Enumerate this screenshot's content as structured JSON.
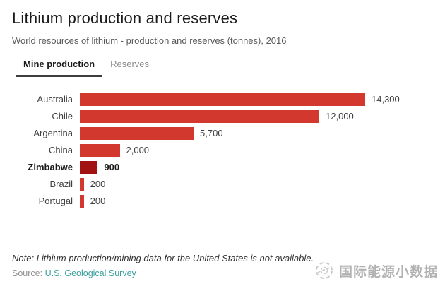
{
  "header": {
    "title": "Lithium production and reserves",
    "subtitle": "World resources of lithium - production and reserves (tonnes), 2016"
  },
  "tabs": [
    {
      "label": "Mine production",
      "active": true
    },
    {
      "label": "Reserves",
      "active": false
    }
  ],
  "chart_data": {
    "type": "bar",
    "orientation": "horizontal",
    "title": "Lithium production and reserves",
    "subtitle": "World resources of lithium - production and reserves (tonnes), 2016",
    "unit": "tonnes",
    "year": "2016",
    "categories": [
      "Australia",
      "Chile",
      "Argentina",
      "China",
      "Zimbabwe",
      "Brazil",
      "Portugal"
    ],
    "values": [
      14300,
      12000,
      5700,
      2000,
      900,
      200,
      200
    ],
    "value_labels": [
      "14,300",
      "12,000",
      "5,700",
      "2,000",
      "900",
      "200",
      "200"
    ],
    "emphasized_category": "Zimbabwe",
    "bar_color": "#d2382d",
    "emphasis_bar_color": "#a31212",
    "xlim": [
      0,
      14300
    ],
    "grid": false,
    "legend": false
  },
  "footer": {
    "note": "Note: Lithium production/mining data for the United States is not available.",
    "source_prefix": "Source: ",
    "source_link": "U.S. Geological Survey",
    "source_link_color": "#3aa09e"
  },
  "watermark": {
    "icon": "globe-sketch-icon",
    "text": "国际能源小数据"
  }
}
